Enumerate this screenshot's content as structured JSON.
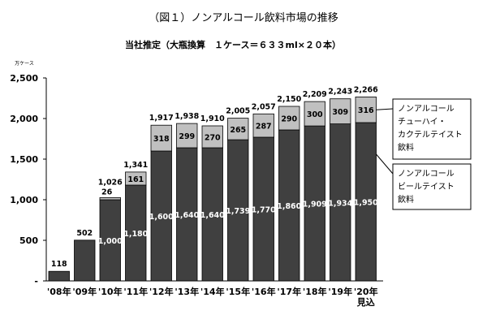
{
  "chart_data": {
    "type": "bar",
    "title": "（図１）ノンアルコール飲料市場の推移",
    "subtitle": "当社推定（大瓶換算　１ケース＝６３３ml×２０本）",
    "ylabel": "万ケース",
    "ylim": [
      0,
      2500
    ],
    "yticks": [
      "2,500",
      "2,000",
      "1,500",
      "1,000",
      "500",
      "-"
    ],
    "ytick_values": [
      2500,
      2000,
      1500,
      1000,
      500,
      0
    ],
    "categories": [
      "'08年",
      "'09年",
      "'10年",
      "'11年",
      "'12年",
      "'13年",
      "'14年",
      "'15年",
      "'16年",
      "'17年",
      "'18年",
      "'19年",
      "'20年"
    ],
    "category_note": {
      "index": 12,
      "text": "見込"
    },
    "series": [
      {
        "name": "ノンアルコールビールテイスト飲料",
        "legend_lines": [
          "ノンアルコール",
          "ビールテイスト",
          "飲料"
        ],
        "color": "#404040",
        "values": [
          118,
          502,
          1000,
          1180,
          1600,
          1640,
          1640,
          1739,
          1770,
          1860,
          1909,
          1934,
          1950
        ],
        "labels": [
          "",
          "",
          "1,000",
          "1,180",
          "1,600",
          "1,640",
          "1,640",
          "1,739",
          "1,770",
          "1,860",
          "1,909",
          "1,934",
          "1,950"
        ]
      },
      {
        "name": "ノンアルコールチューハイ・カクテルテイスト飲料",
        "legend_lines": [
          "ノンアルコール",
          "チューハイ・",
          "カクテルテイスト",
          "飲料"
        ],
        "color": "#c0c0c0",
        "values": [
          0,
          0,
          26,
          161,
          318,
          299,
          270,
          265,
          287,
          290,
          300,
          309,
          316
        ],
        "labels": [
          "",
          "",
          "26",
          "161",
          "318",
          "299",
          "270",
          "265",
          "287",
          "290",
          "300",
          "309",
          "316"
        ]
      }
    ],
    "totals": [
      "118",
      "502",
      "1,026",
      "1,341",
      "1,917",
      "1,938",
      "1,910",
      "2,005",
      "2,057",
      "2,150",
      "2,209",
      "2,243",
      "2,266"
    ],
    "grid": false,
    "legend_position": "right"
  }
}
